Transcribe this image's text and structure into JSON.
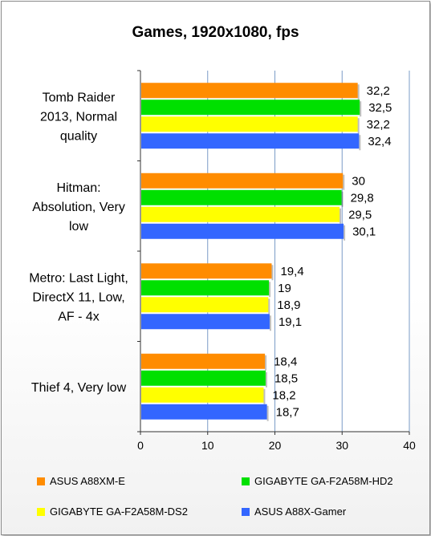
{
  "chart_data": {
    "type": "bar",
    "orientation": "horizontal",
    "title": "Games, 1920x1080, fps",
    "categories": [
      [
        "Tomb Raider",
        "2013, Normal",
        "quality"
      ],
      [
        "Hitman:",
        "Absolution, Very",
        "low"
      ],
      [
        "Metro: Last Light,",
        "DirectX 11, Low,",
        "AF - 4x"
      ],
      [
        "Thief 4, Very low"
      ]
    ],
    "series": [
      {
        "name": "ASUS A88XM-E",
        "color": "#ff8c00",
        "values": [
          32.2,
          30,
          19.4,
          18.4
        ],
        "labels": [
          "32,2",
          "30",
          "19,4",
          "18,4"
        ]
      },
      {
        "name": "GIGABYTE GA-F2A58M-HD2",
        "color": "#00e000",
        "values": [
          32.5,
          29.8,
          19,
          18.5
        ],
        "labels": [
          "32,5",
          "29,8",
          "19",
          "18,5"
        ]
      },
      {
        "name": "GIGABYTE GA-F2A58M-DS2",
        "color": "#ffff00",
        "values": [
          32.2,
          29.5,
          18.9,
          18.2
        ],
        "labels": [
          "32,2",
          "29,5",
          "18,9",
          "18,2"
        ]
      },
      {
        "name": "ASUS A88X-Gamer",
        "color": "#3366ff",
        "values": [
          32.4,
          30.1,
          19.1,
          18.7
        ],
        "labels": [
          "32,4",
          "30,1",
          "19,1",
          "18,7"
        ]
      }
    ],
    "xlim": [
      0,
      40
    ],
    "xticks": [
      "0",
      "10",
      "20",
      "30",
      "40"
    ],
    "grid": "vertical",
    "legend_position": "bottom"
  }
}
